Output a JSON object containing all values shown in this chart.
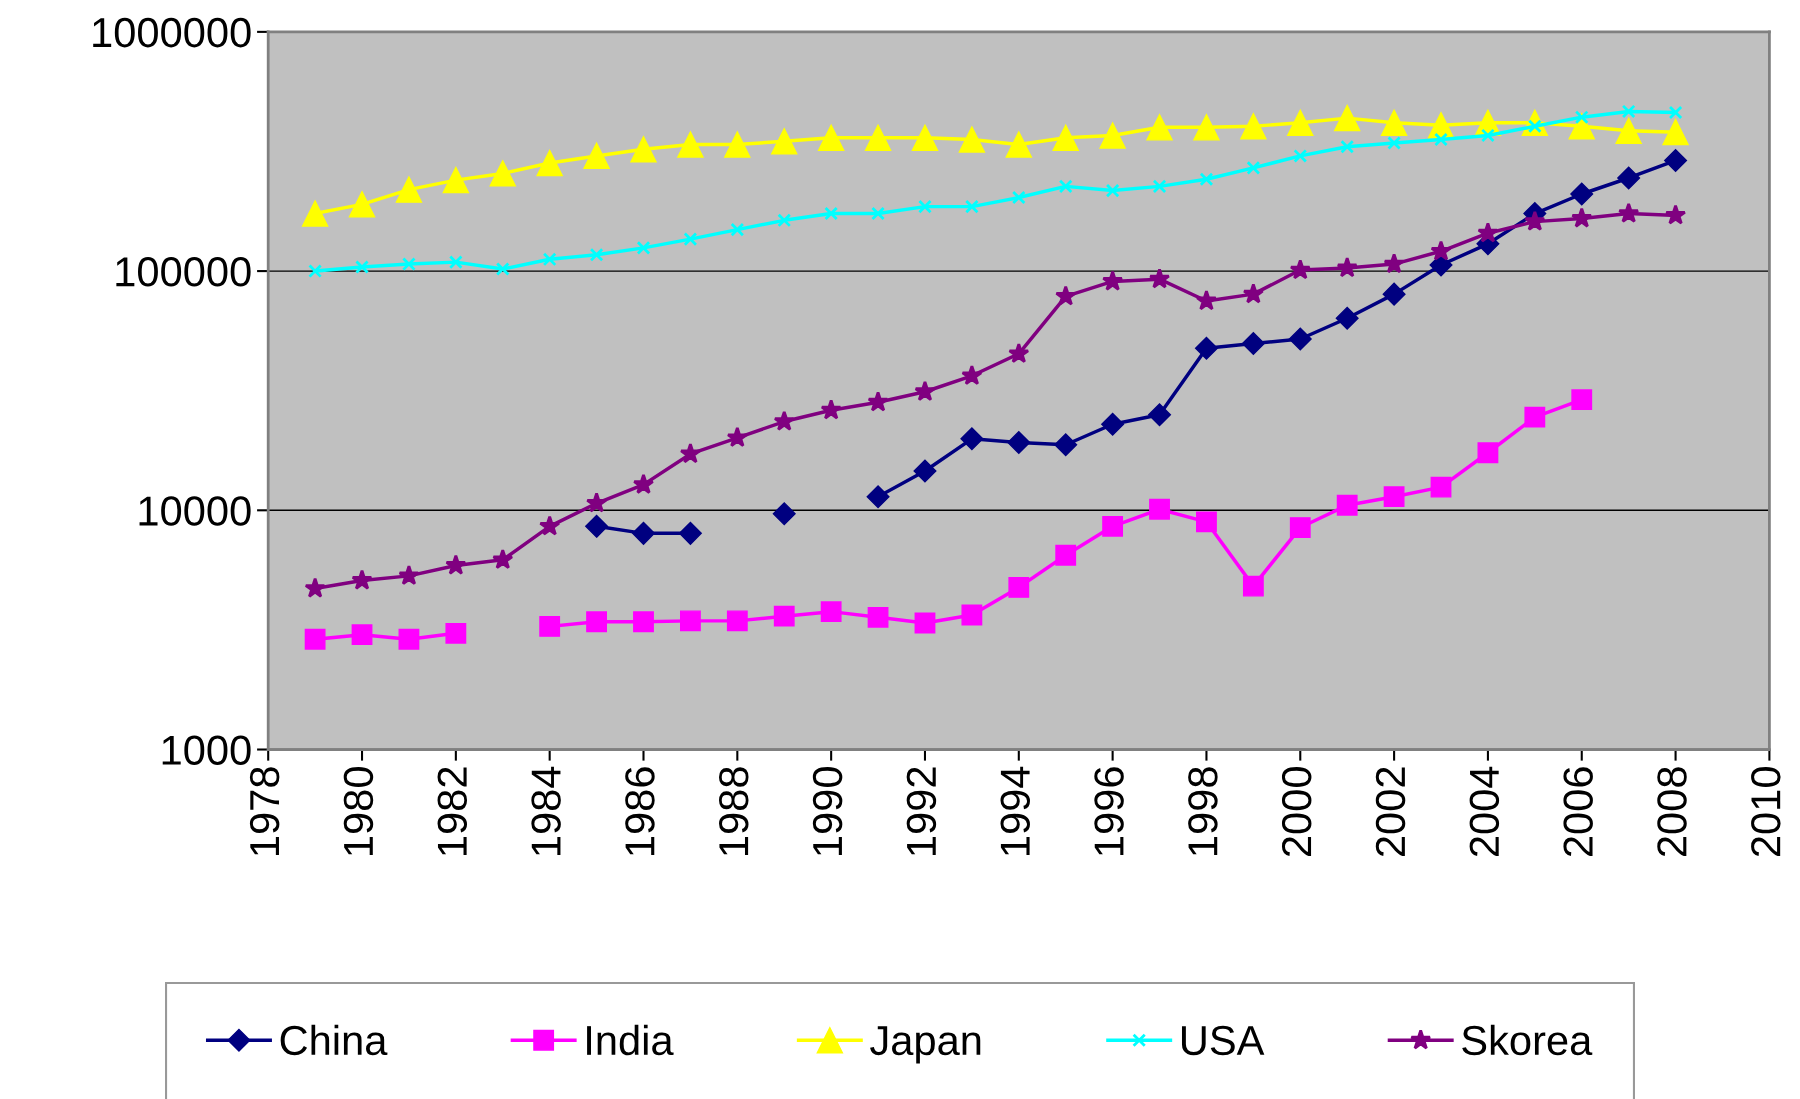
{
  "chart_data": {
    "type": "line",
    "x": [
      1979,
      1980,
      1981,
      1982,
      1983,
      1984,
      1985,
      1986,
      1987,
      1988,
      1989,
      1990,
      1991,
      1992,
      1993,
      1994,
      1995,
      1996,
      1997,
      1998,
      1999,
      2000,
      2001,
      2002,
      2003,
      2004,
      2005,
      2006,
      2007,
      2008
    ],
    "series": [
      {
        "name": "China",
        "color": "#000080",
        "marker": "diamond",
        "values": [
          null,
          null,
          null,
          null,
          null,
          null,
          8570,
          8010,
          8010,
          null,
          9680,
          null,
          11400,
          14600,
          19900,
          19200,
          18800,
          22900,
          25100,
          47600,
          49800,
          52000,
          63500,
          80100,
          106000,
          130000,
          174000,
          210000,
          245000,
          290000
        ]
      },
      {
        "name": "India",
        "color": "#ff00ff",
        "marker": "square",
        "values": [
          2890,
          3020,
          2890,
          3060,
          null,
          3270,
          3420,
          3420,
          3450,
          3450,
          3610,
          3770,
          3570,
          3380,
          3650,
          4760,
          6490,
          8570,
          10100,
          8950,
          4820,
          8470,
          10500,
          11400,
          12500,
          17400,
          24500,
          29000,
          null,
          null
        ]
      },
      {
        "name": "Japan",
        "color": "#ffff00",
        "marker": "triangle",
        "values": [
          174000,
          190000,
          219000,
          240000,
          256000,
          283000,
          303000,
          323000,
          338000,
          338000,
          349000,
          361000,
          361000,
          361000,
          355000,
          338000,
          361000,
          369000,
          399000,
          399000,
          403000,
          417000,
          436000,
          417000,
          407000,
          417000,
          417000,
          403000,
          386000,
          381000
        ]
      },
      {
        "name": "USA",
        "color": "#00ffff",
        "marker": "cross",
        "values": [
          100000,
          104000,
          107000,
          109000,
          102000,
          112000,
          117000,
          125000,
          136000,
          149000,
          163000,
          174000,
          174000,
          186000,
          186000,
          203000,
          226000,
          217000,
          226000,
          242000,
          270000,
          303000,
          331000,
          343000,
          355000,
          369000,
          403000,
          440000,
          465000,
          460000
        ]
      },
      {
        "name": "Skorea",
        "color": "#800080",
        "marker": "star",
        "values": [
          4710,
          5090,
          5320,
          5880,
          6210,
          8570,
          10700,
          12800,
          17200,
          20100,
          23500,
          26200,
          28300,
          31300,
          36500,
          45100,
          78400,
          90500,
          92500,
          75000,
          80100,
          101000,
          103000,
          107000,
          121000,
          144000,
          161000,
          166000,
          174000,
          171000
        ]
      }
    ],
    "log": "y",
    "xlim": [
      1978,
      2010
    ],
    "xticks": [
      1978,
      1980,
      1982,
      1984,
      1986,
      1988,
      1990,
      1992,
      1994,
      1996,
      1998,
      2000,
      2002,
      2004,
      2006,
      2008,
      2010
    ],
    "ylim": [
      1000,
      1000000
    ],
    "yticks": [
      1000,
      10000,
      100000,
      1000000
    ],
    "grid": "y",
    "legend": "bottom"
  }
}
